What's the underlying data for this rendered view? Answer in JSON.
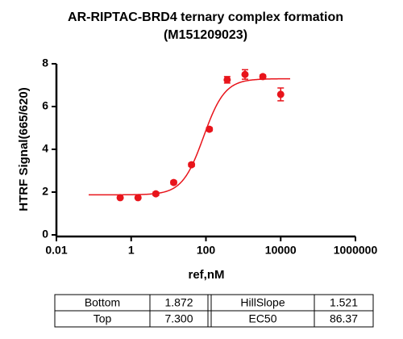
{
  "chart_data": {
    "type": "scatter",
    "title": "AR-RIPTAC-BRD4 ternary complex formation",
    "subtitle": "(M151209023)",
    "x_label": "ref,nM",
    "y_label": "HTRF Signal(665/620)",
    "x_scale": "log",
    "xlim": [
      0.01,
      1000000
    ],
    "xticks": [
      0.01,
      1,
      100,
      10000,
      1000000
    ],
    "ylim": [
      0,
      8
    ],
    "yticks": [
      0,
      2,
      4,
      6,
      8
    ],
    "x": [
      0.508,
      1.524,
      4.572,
      13.72,
      41.15,
      123.5,
      370.4,
      1111,
      3333,
      10000
    ],
    "series": [
      {
        "color": "#e8141b",
        "values": [
          1.74,
          1.74,
          1.92,
          2.45,
          3.28,
          4.94,
          7.25,
          7.5,
          7.4,
          6.57
        ],
        "errors": [
          0.05,
          0.05,
          0.08,
          0.08,
          0.08,
          0.08,
          0.15,
          0.22,
          0.08,
          0.3
        ]
      }
    ],
    "fit": [
      {
        "name": "Bottom",
        "value": 1.872,
        "label": "1.872"
      },
      {
        "name": "Top",
        "value": 7.3,
        "label": "7.300"
      },
      {
        "name": "HillSlope",
        "value": 1.521,
        "label": "1.521"
      },
      {
        "name": "EC50",
        "value": 86.37,
        "label": "86.37"
      }
    ]
  }
}
